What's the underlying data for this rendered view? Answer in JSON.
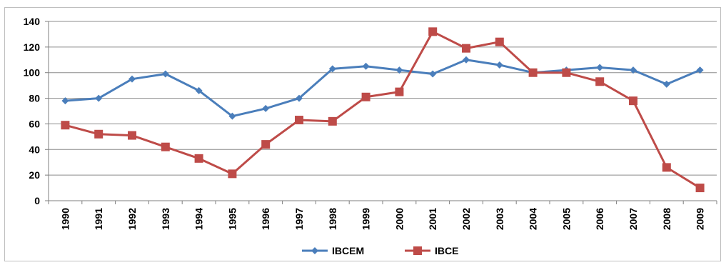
{
  "chart_data": {
    "type": "line",
    "title": "",
    "xlabel": "",
    "ylabel": "",
    "categories": [
      "1990",
      "1991",
      "1992",
      "1993",
      "1994",
      "1995",
      "1996",
      "1997",
      "1998",
      "1999",
      "2000",
      "2001",
      "2002",
      "2003",
      "2004",
      "2005",
      "2006",
      "2007",
      "2008",
      "2009"
    ],
    "ylim": [
      0,
      140
    ],
    "yticks": [
      0,
      20,
      40,
      60,
      80,
      100,
      120,
      140
    ],
    "grid": "horizontal",
    "legend_position": "bottom",
    "series": [
      {
        "name": "IBCEM",
        "color": "#4a7ebb",
        "marker": "diamond",
        "values": [
          78,
          80,
          95,
          99,
          86,
          66,
          72,
          80,
          103,
          105,
          102,
          99,
          110,
          106,
          100,
          102,
          104,
          102,
          91,
          102
        ]
      },
      {
        "name": "IBCE",
        "color": "#be4b48",
        "marker": "square",
        "values": [
          59,
          52,
          51,
          42,
          33,
          21,
          44,
          63,
          62,
          81,
          85,
          132,
          119,
          124,
          100,
          100,
          93,
          78,
          26,
          10
        ]
      }
    ]
  }
}
